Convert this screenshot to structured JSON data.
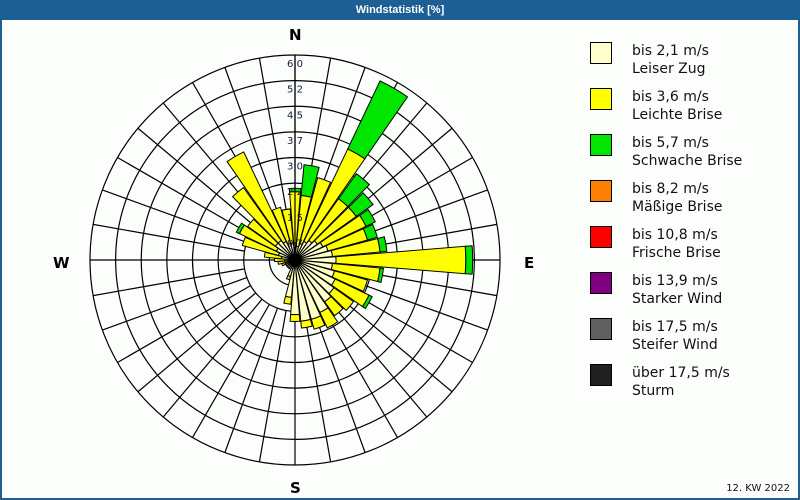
{
  "window": {
    "title": "Windstatistik [%]",
    "footer": "12. KW 2022"
  },
  "compass": {
    "n": "N",
    "e": "E",
    "s": "S",
    "w": "W"
  },
  "legend": [
    {
      "speed": "bis 2,1 m/s",
      "name": "Leiser Zug",
      "color": "#ffffcc"
    },
    {
      "speed": "bis 3,6 m/s",
      "name": "Leichte Brise",
      "color": "#ffff00"
    },
    {
      "speed": "bis 5,7 m/s",
      "name": "Schwache Brise",
      "color": "#00e600"
    },
    {
      "speed": "bis 8,2 m/s",
      "name": "Mäßige Brise",
      "color": "#ff8000"
    },
    {
      "speed": "bis 10,8 m/s",
      "name": "Frische Brise",
      "color": "#ff0000"
    },
    {
      "speed": "bis 13,9 m/s",
      "name": "Starker Wind",
      "color": "#800080"
    },
    {
      "speed": "bis 17,5 m/s",
      "name": "Steifer Wind",
      "color": "#606060"
    },
    {
      "speed": "über 17,5 m/s",
      "name": "Sturm",
      "color": "#202020"
    }
  ],
  "chart_data": {
    "type": "polar-bar (wind rose)",
    "title": "Windstatistik [%]",
    "subtitle": "12. KW 2022",
    "radial_ticks": [
      "0,7",
      "1,5",
      "2,2",
      "3,0",
      "3,7",
      "4,5",
      "5,2",
      "6,0"
    ],
    "radial_max": 6.0,
    "sector_width_deg": 10,
    "directions_deg": [
      0,
      10,
      20,
      30,
      40,
      50,
      60,
      70,
      80,
      90,
      100,
      110,
      120,
      130,
      140,
      150,
      160,
      170,
      180,
      190,
      200,
      210,
      220,
      230,
      240,
      250,
      260,
      270,
      280,
      290,
      300,
      310,
      320,
      330,
      340,
      350
    ],
    "series": [
      {
        "name": "bis 2,1 m/s",
        "color": "#ffffcc",
        "values": [
          0.5,
          0.4,
          0.5,
          0.6,
          0.7,
          0.8,
          0.9,
          1.0,
          1.1,
          1.2,
          1.1,
          1.2,
          1.3,
          1.4,
          1.5,
          1.7,
          1.8,
          1.8,
          1.6,
          1.1,
          0.5,
          0.3,
          0.3,
          0.3,
          0.3,
          0.3,
          0.3,
          0.3,
          0.4,
          0.5,
          0.6,
          0.7,
          0.7,
          0.6,
          0.5,
          0.5
        ]
      },
      {
        "name": "bis 3,6 m/s",
        "color": "#ffff00",
        "values": [
          1.5,
          1.5,
          2.0,
          3.0,
          1.5,
          1.4,
          1.4,
          1.2,
          1.4,
          3.8,
          1.4,
          1.0,
          1.1,
          0.7,
          0.5,
          0.5,
          0.3,
          0.2,
          0.2,
          0.2,
          0.1,
          0.0,
          0.0,
          0.0,
          0.0,
          0.1,
          0.2,
          0.3,
          0.5,
          1.1,
          1.2,
          1.0,
          1.9,
          2.9,
          1.1,
          1.0
        ]
      },
      {
        "name": "bis 5,7 m/s",
        "color": "#00e600",
        "values": [
          0.1,
          0.9,
          0.0,
          2.2,
          0.9,
          0.6,
          0.3,
          0.3,
          0.2,
          0.2,
          0.1,
          0.0,
          0.1,
          0.0,
          0.0,
          0.0,
          0.0,
          0.0,
          0.0,
          0.0,
          0.0,
          0.0,
          0.0,
          0.0,
          0.0,
          0.0,
          0.0,
          0.0,
          0.0,
          0.0,
          0.1,
          0.0,
          0.0,
          0.0,
          0.0,
          0.0
        ]
      },
      {
        "name": "bis 8,2 m/s",
        "color": "#ff8000",
        "values": [
          0,
          0,
          0,
          0,
          0,
          0,
          0,
          0,
          0,
          0,
          0,
          0,
          0,
          0,
          0,
          0,
          0,
          0,
          0,
          0,
          0,
          0,
          0,
          0,
          0,
          0,
          0,
          0,
          0,
          0,
          0,
          0,
          0,
          0,
          0,
          0
        ]
      }
    ]
  }
}
